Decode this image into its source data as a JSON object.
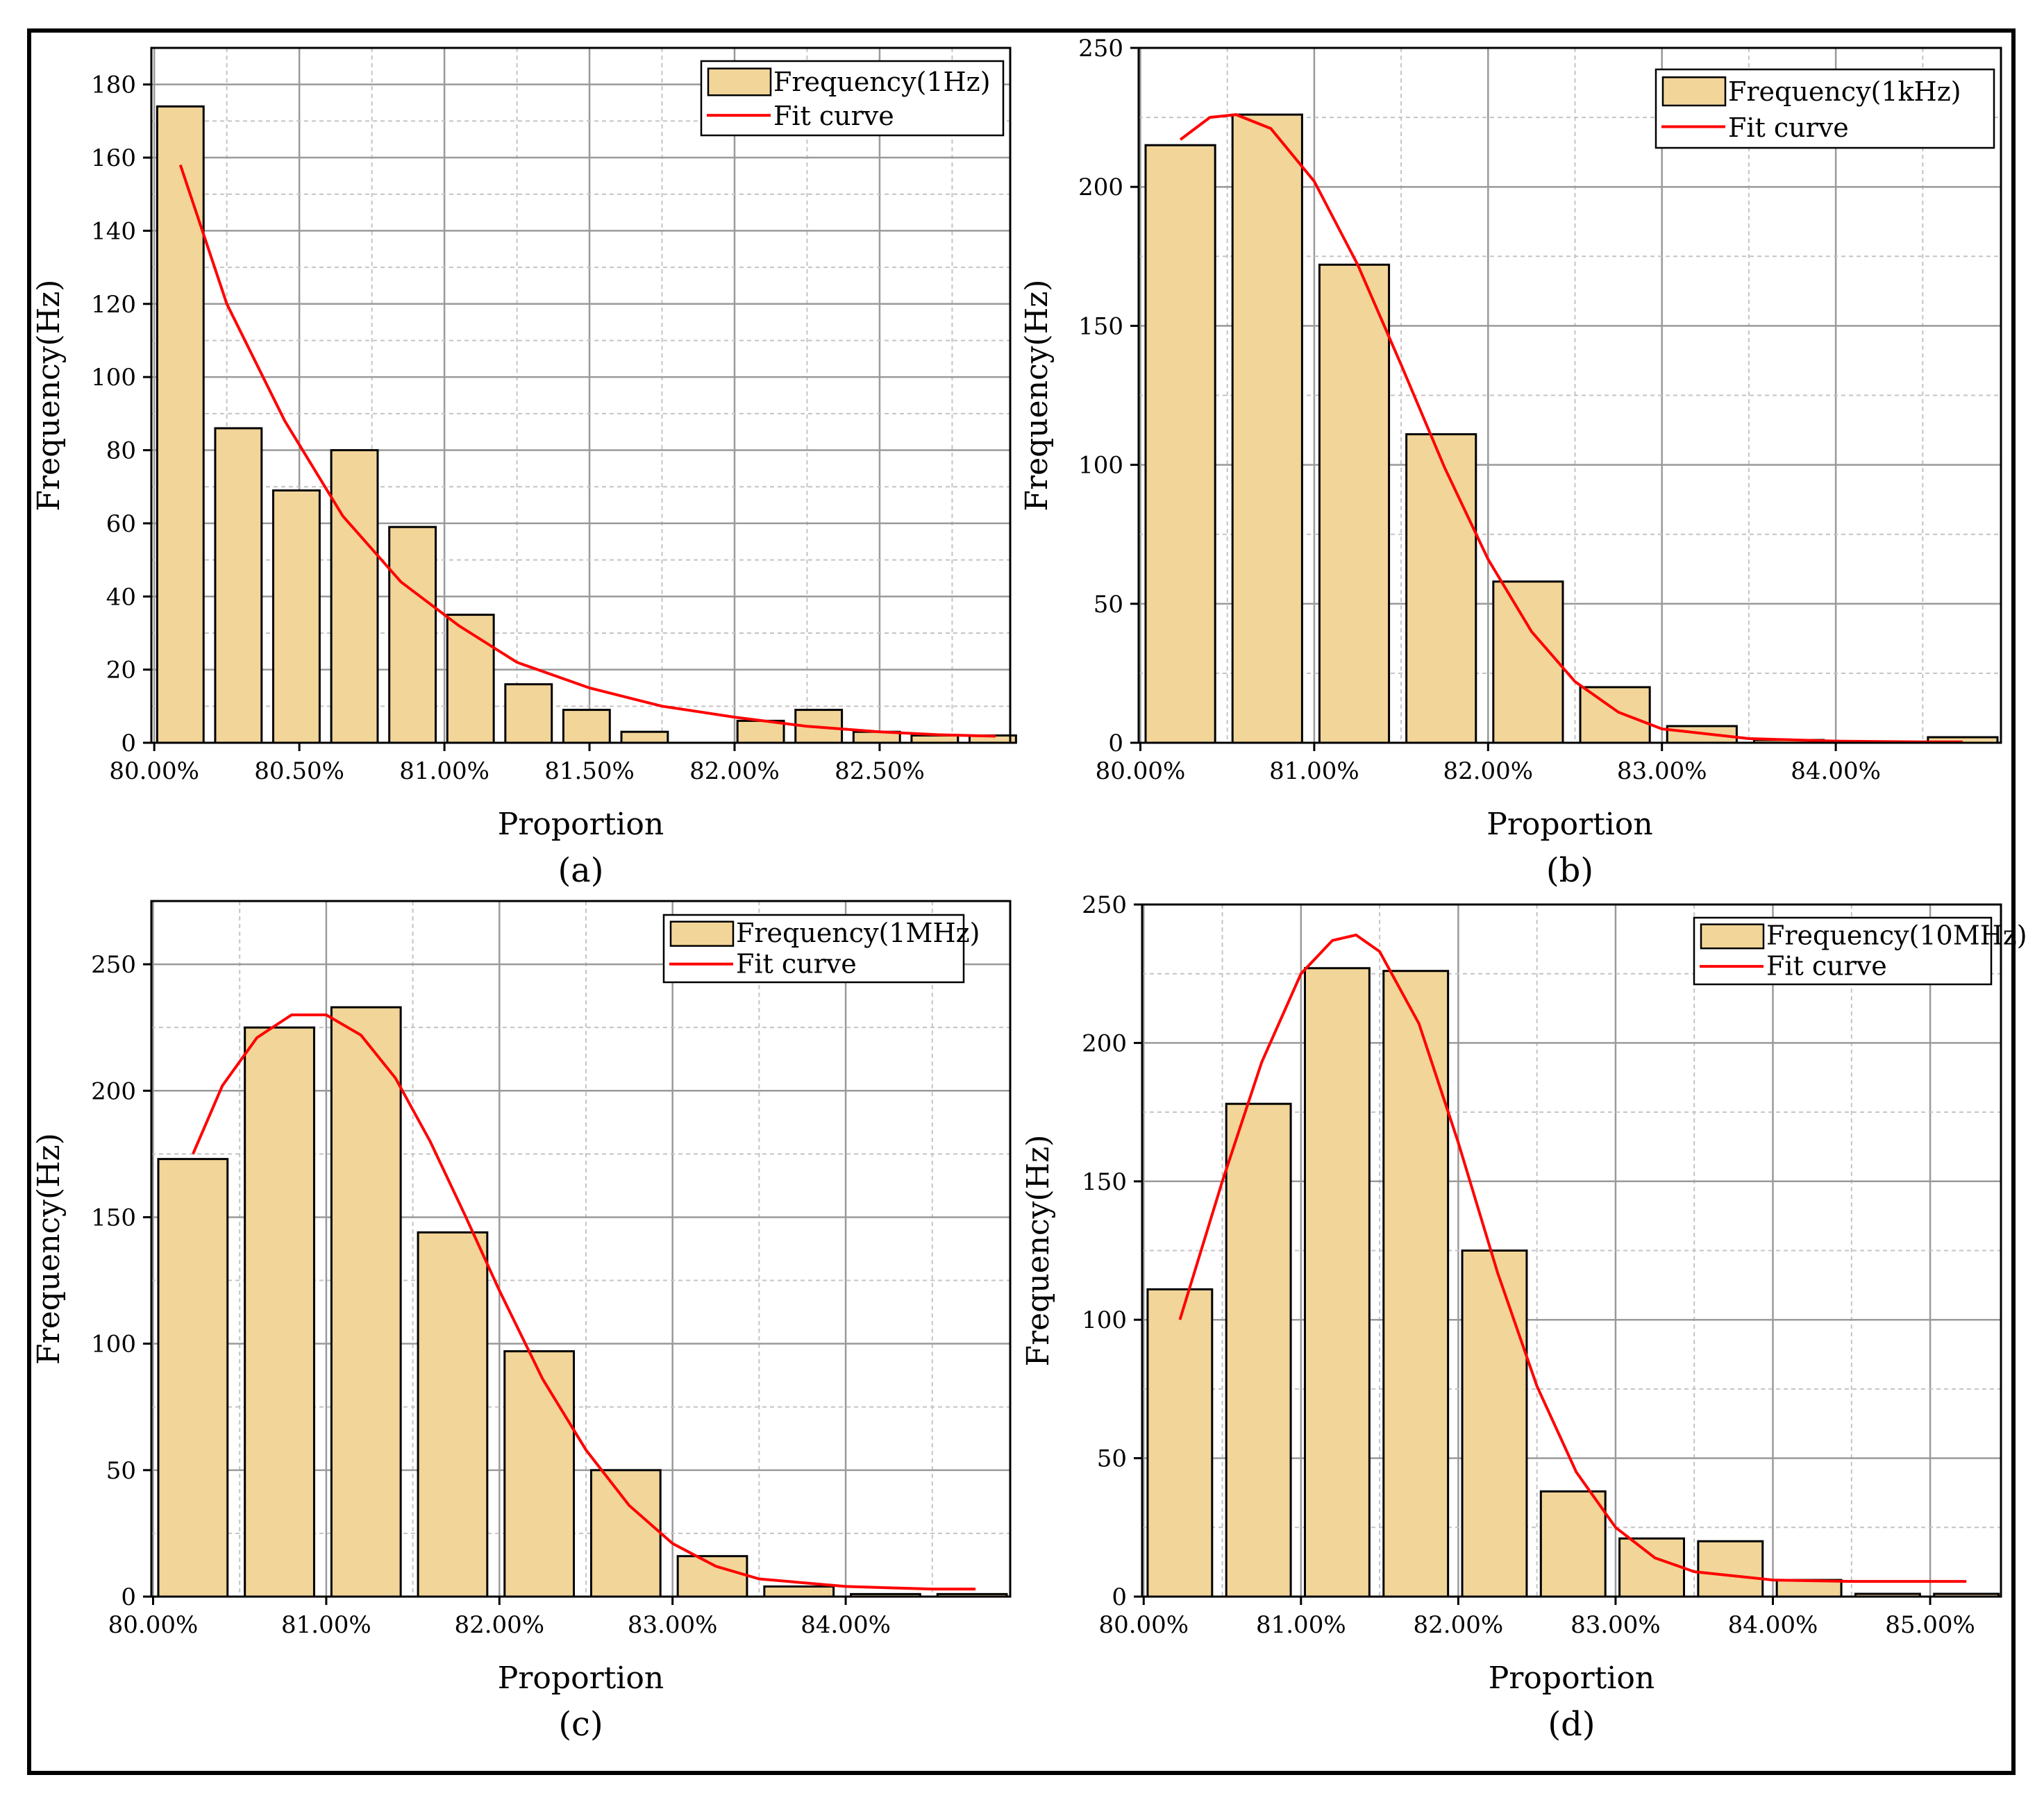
{
  "colors": {
    "bar": "#F2D598",
    "bar_stroke": "#000000",
    "fit": "#FF0000",
    "grid_major": "#9a9a9a",
    "grid_minor": "#c4c4c4"
  },
  "chart_data": [
    {
      "type": "bar",
      "panel": "a",
      "caption": "(a)",
      "xlabel": "Proportion",
      "ylabel": "Frequency(Hz)",
      "xlim": [
        79.99,
        82.95
      ],
      "ylim": [
        0,
        190
      ],
      "x_ticks": [
        80.0,
        80.5,
        81.0,
        81.5,
        82.0,
        82.5
      ],
      "x_tick_labels": [
        "80.00%",
        "80.50%",
        "81.00%",
        "81.50%",
        "82.00%",
        "82.50%"
      ],
      "y_ticks": [
        0,
        20,
        40,
        60,
        80,
        100,
        120,
        140,
        160,
        180
      ],
      "y_tick_labels": [
        "0",
        "20",
        "40",
        "60",
        "80",
        "100",
        "120",
        "140",
        "160",
        "180"
      ],
      "minor_x_step": 0.25,
      "minor_y_step": 10,
      "bin_width": 0.2,
      "bar_fraction": 0.8,
      "bins": [
        80.09,
        80.29,
        80.49,
        80.69,
        80.89,
        81.09,
        81.29,
        81.49,
        81.69,
        81.89,
        82.09,
        82.29,
        82.49,
        82.69,
        82.89
      ],
      "values": [
        174,
        86,
        69,
        80,
        59,
        35,
        16,
        9,
        3,
        0,
        6,
        9,
        3,
        2,
        2
      ],
      "fit_curve": {
        "x": [
          80.09,
          80.25,
          80.45,
          80.65,
          80.85,
          81.05,
          81.25,
          81.5,
          81.75,
          82.0,
          82.25,
          82.5,
          82.7,
          82.9
        ],
        "y": [
          158,
          120,
          88,
          62,
          44,
          32,
          22,
          15,
          10,
          7,
          4.5,
          3,
          2.2,
          1.8
        ]
      },
      "legend": {
        "bar_label": "Frequency(1Hz)",
        "line_label": "Fit curve",
        "position": "top-right"
      }
    },
    {
      "type": "bar",
      "panel": "b",
      "caption": "(b)",
      "xlabel": "Proportion",
      "ylabel": "Frequency(Hz)",
      "xlim": [
        79.99,
        84.95
      ],
      "ylim": [
        0,
        250
      ],
      "x_ticks": [
        80.0,
        81.0,
        82.0,
        83.0,
        84.0
      ],
      "x_tick_labels": [
        "80.00%",
        "81.00%",
        "82.00%",
        "83.00%",
        "84.00%"
      ],
      "y_ticks": [
        0,
        50,
        100,
        150,
        200,
        250
      ],
      "y_tick_labels": [
        "0",
        "50",
        "100",
        "150",
        "200",
        "250"
      ],
      "minor_x_step": 0.5,
      "minor_y_step": 25,
      "bin_width": 0.5,
      "bar_fraction": 0.8,
      "bins": [
        80.23,
        80.73,
        81.23,
        81.73,
        82.23,
        82.73,
        83.23,
        83.73,
        84.23,
        84.73
      ],
      "values": [
        215,
        226,
        172,
        111,
        58,
        20,
        6,
        1,
        0,
        2
      ],
      "fit_curve": {
        "x": [
          80.23,
          80.4,
          80.55,
          80.75,
          81.0,
          81.25,
          81.5,
          81.75,
          82.0,
          82.25,
          82.5,
          82.75,
          83.0,
          83.5,
          84.0,
          84.5,
          84.73
        ],
        "y": [
          217,
          225,
          226,
          221,
          202,
          172,
          136,
          99,
          66,
          40,
          22,
          11,
          5,
          1.5,
          0.6,
          0.3,
          0.3
        ]
      },
      "legend": {
        "bar_label": "Frequency(1kHz)",
        "line_label": "Fit curve",
        "position": "top-right"
      }
    },
    {
      "type": "bar",
      "panel": "c",
      "caption": "(c)",
      "xlabel": "Proportion",
      "ylabel": "Frequency(Hz)",
      "xlim": [
        79.99,
        84.95
      ],
      "ylim": [
        0,
        275
      ],
      "x_ticks": [
        80.0,
        81.0,
        82.0,
        83.0,
        84.0
      ],
      "x_tick_labels": [
        "80.00%",
        "81.00%",
        "82.00%",
        "83.00%",
        "84.00%"
      ],
      "y_ticks": [
        0,
        50,
        100,
        150,
        200,
        250
      ],
      "y_tick_labels": [
        "0",
        "50",
        "100",
        "150",
        "200",
        "250"
      ],
      "minor_x_step": 0.5,
      "minor_y_step": 25,
      "bin_width": 0.5,
      "bar_fraction": 0.8,
      "bins": [
        80.23,
        80.73,
        81.23,
        81.73,
        82.23,
        82.73,
        83.23,
        83.73,
        84.23,
        84.73
      ],
      "values": [
        173,
        225,
        233,
        144,
        97,
        50,
        16,
        4,
        1,
        1
      ],
      "fit_curve": {
        "x": [
          80.23,
          80.4,
          80.6,
          80.8,
          81.0,
          81.2,
          81.4,
          81.6,
          81.8,
          82.0,
          82.25,
          82.5,
          82.75,
          83.0,
          83.25,
          83.5,
          84.0,
          84.5,
          84.75
        ],
        "y": [
          175,
          202,
          221,
          230,
          230,
          222,
          205,
          180,
          151,
          121,
          86,
          58,
          36,
          21,
          12,
          7,
          4,
          3,
          3
        ]
      },
      "legend": {
        "bar_label": "Frequency(1MHz)",
        "line_label": "Fit curve",
        "position": "top-right"
      }
    },
    {
      "type": "bar",
      "panel": "d",
      "caption": "(d)",
      "xlabel": "Proportion",
      "ylabel": "Frequency(Hz)",
      "xlim": [
        79.99,
        85.45
      ],
      "ylim": [
        0,
        250
      ],
      "x_ticks": [
        80.0,
        81.0,
        82.0,
        83.0,
        84.0,
        85.0
      ],
      "x_tick_labels": [
        "80.00%",
        "81.00%",
        "82.00%",
        "83.00%",
        "84.00%",
        "85.00%"
      ],
      "y_ticks": [
        0,
        50,
        100,
        150,
        200,
        250
      ],
      "y_tick_labels": [
        "0",
        "50",
        "100",
        "150",
        "200",
        "250"
      ],
      "minor_x_step": 0.5,
      "minor_y_step": 25,
      "bin_width": 0.5,
      "bar_fraction": 0.82,
      "bins": [
        80.23,
        80.73,
        81.23,
        81.73,
        82.23,
        82.73,
        83.23,
        83.73,
        84.23,
        84.73,
        85.23
      ],
      "values": [
        111,
        178,
        227,
        226,
        125,
        38,
        21,
        20,
        6,
        1,
        1
      ],
      "fit_curve": {
        "x": [
          80.23,
          80.5,
          80.75,
          81.0,
          81.2,
          81.35,
          81.5,
          81.75,
          82.0,
          82.25,
          82.5,
          82.75,
          83.0,
          83.25,
          83.5,
          84.0,
          84.5,
          85.0,
          85.23
        ],
        "y": [
          100,
          150,
          193,
          225,
          237,
          239,
          233,
          207,
          164,
          117,
          76,
          45,
          25,
          14,
          9,
          6,
          5.5,
          5.5,
          5.5
        ]
      },
      "legend": {
        "bar_label": "Frequency(10MHz)",
        "line_label": "Fit curve",
        "position": "top-right"
      }
    }
  ]
}
